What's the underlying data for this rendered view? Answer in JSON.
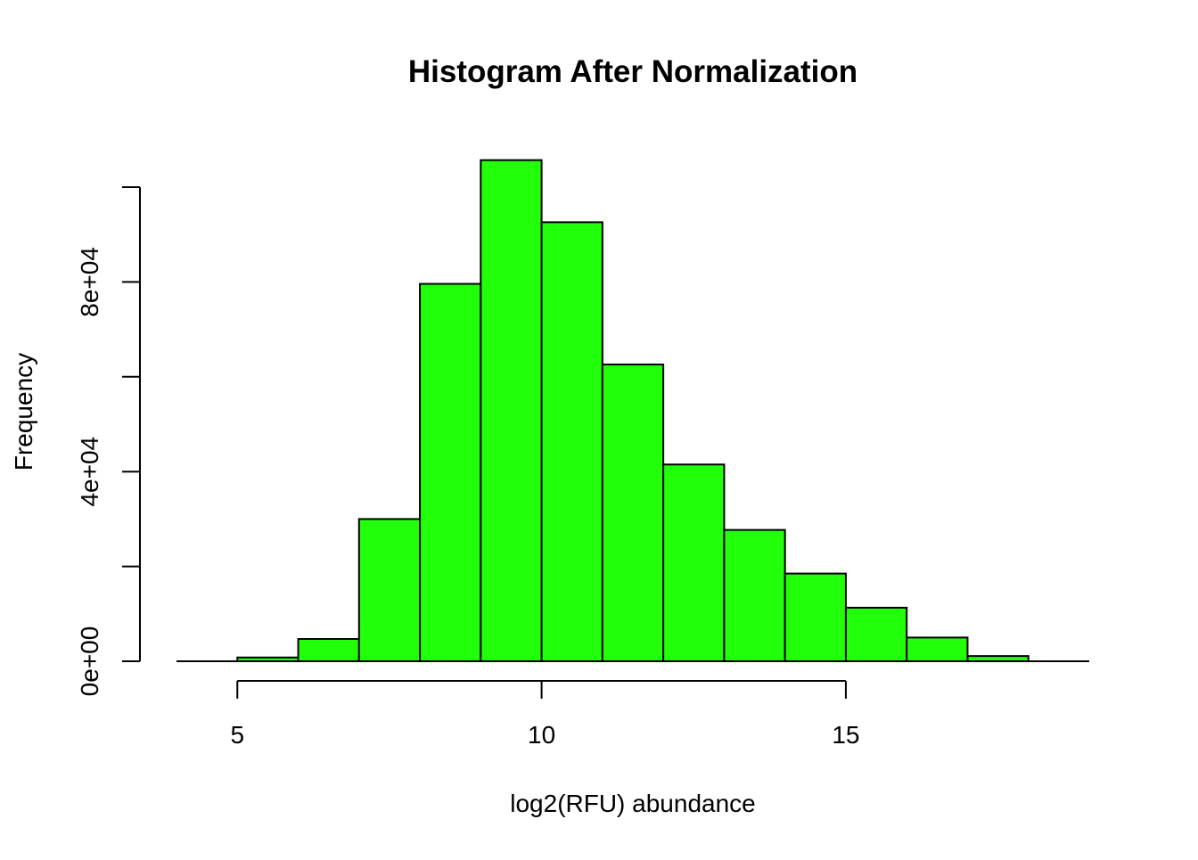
{
  "chart_data": {
    "type": "histogram",
    "title": "Histogram After Normalization",
    "xlabel": "log2(RFU) abundance",
    "ylabel": "Frequency",
    "bin_edges": [
      5,
      6,
      7,
      8,
      9,
      10,
      11,
      12,
      13,
      14,
      15,
      16,
      17,
      18
    ],
    "counts": [
      800,
      4700,
      30000,
      79600,
      105700,
      92600,
      62600,
      41500,
      27700,
      18500,
      11300,
      5000,
      1100
    ],
    "xlim": [
      4,
      19
    ],
    "ylim": [
      0,
      100000
    ],
    "x_ticks": [
      5,
      10,
      15
    ],
    "x_tick_labels": [
      "5",
      "10",
      "15"
    ],
    "y_ticks": [
      0,
      20000,
      40000,
      60000,
      80000,
      100000
    ],
    "y_tick_labels": [
      "0e+00",
      "",
      "4e+04",
      "",
      "8e+04",
      ""
    ],
    "bar_fill": "#22ff0a",
    "bar_stroke": "#000000",
    "grid": false,
    "legend": "none"
  }
}
